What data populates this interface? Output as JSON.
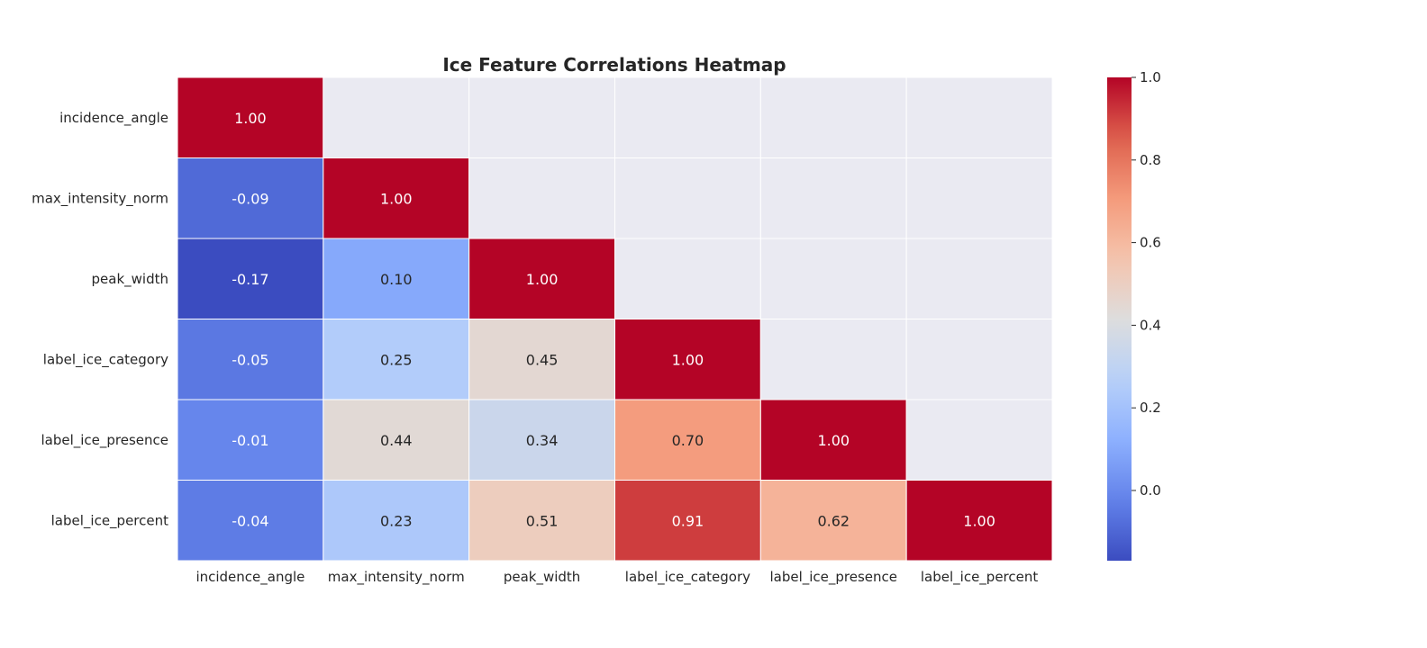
{
  "chart_data": {
    "type": "heatmap",
    "title": "Ice Feature Correlations Heatmap",
    "xlabel": "",
    "ylabel": "",
    "variables": [
      "incidence_angle",
      "max_intensity_norm",
      "peak_width",
      "label_ice_category",
      "label_ice_presence",
      "label_ice_percent"
    ],
    "mask": "upper_triangle",
    "values": [
      [
        1.0,
        null,
        null,
        null,
        null,
        null
      ],
      [
        -0.09,
        1.0,
        null,
        null,
        null,
        null
      ],
      [
        -0.17,
        0.1,
        1.0,
        null,
        null,
        null
      ],
      [
        -0.05,
        0.25,
        0.45,
        1.0,
        null,
        null
      ],
      [
        -0.01,
        0.44,
        0.34,
        0.7,
        1.0,
        null
      ],
      [
        -0.04,
        0.23,
        0.51,
        0.91,
        0.62,
        1.0
      ]
    ],
    "annotation_format": "0.00",
    "colormap": "coolwarm",
    "vmin": -0.17,
    "vmax": 1.0,
    "colorbar": {
      "ticks": [
        0.0,
        0.2,
        0.4,
        0.6,
        0.8,
        1.0
      ],
      "tick_labels": [
        "0.0",
        "0.2",
        "0.4",
        "0.6",
        "0.8",
        "1.0"
      ]
    },
    "masked_color": "#eaeaf2",
    "grid_line_color": "#ffffff"
  }
}
